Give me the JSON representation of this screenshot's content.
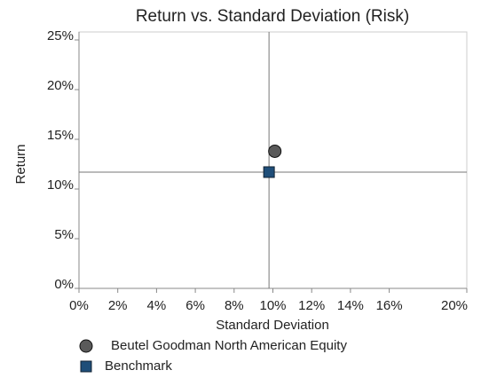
{
  "chart_data": {
    "type": "scatter",
    "title": "Return vs. Standard Deviation (Risk)",
    "x_label": "Standard Deviation",
    "y_label": "Return",
    "xlim": [
      0,
      20
    ],
    "ylim": [
      0,
      25
    ],
    "xticks": [
      {
        "value": 0,
        "label": "0%"
      },
      {
        "value": 2,
        "label": "2%"
      },
      {
        "value": 4,
        "label": "4%"
      },
      {
        "value": 6,
        "label": "6%"
      },
      {
        "value": 8,
        "label": "8%"
      },
      {
        "value": 10,
        "label": "10%"
      },
      {
        "value": 12,
        "label": "12%"
      },
      {
        "value": 14,
        "label": "14%"
      },
      {
        "value": 16,
        "label": "16%"
      },
      {
        "value": 20,
        "label": "20%"
      }
    ],
    "yticks": [
      {
        "value": 0,
        "label": "0%"
      },
      {
        "value": 5,
        "label": "5%"
      },
      {
        "value": 10,
        "label": "10%"
      },
      {
        "value": 15,
        "label": "15%"
      },
      {
        "value": 20,
        "label": "20%"
      },
      {
        "value": 25,
        "label": "25%"
      }
    ],
    "series": [
      {
        "name": "Beutel Goodman North American Equity",
        "color": "#5a5a5a",
        "marker": "circle",
        "x": [
          10.1
        ],
        "values": [
          13.8
        ]
      },
      {
        "name": "Benchmark",
        "color": "#1f4e79",
        "marker": "square",
        "x": [
          9.8
        ],
        "values": [
          11.7
        ]
      }
    ]
  }
}
